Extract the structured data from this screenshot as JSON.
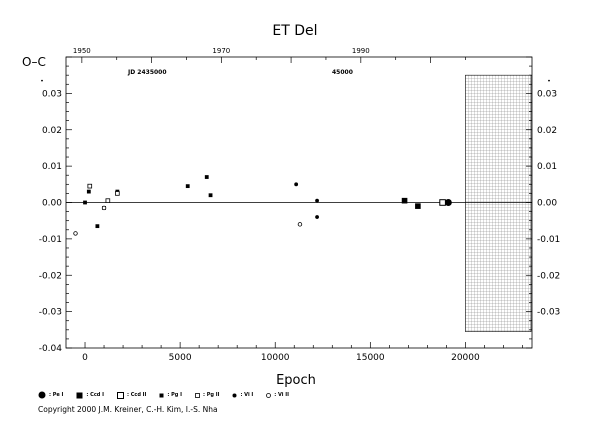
{
  "chart_data": {
    "type": "scatter",
    "title": "ET Del",
    "xlabel": "Epoch",
    "ylabel": "O–C",
    "xlim": [
      -1000,
      23500
    ],
    "ylim": [
      -0.04,
      0.04
    ],
    "x_ticks": [
      0,
      5000,
      10000,
      15000,
      20000
    ],
    "x_tick_labels": [
      "0",
      "5000",
      "10000",
      "15000",
      "20000"
    ],
    "y_ticks": [
      -0.04,
      -0.03,
      -0.02,
      -0.01,
      0.0,
      0.01,
      0.02,
      0.03
    ],
    "y_tick_labels": [
      "-0.04",
      "-0.03",
      "-0.02",
      "-0.01",
      "0.00",
      "0.01",
      "0.02",
      "0.03"
    ],
    "y_tick_labels_right": [
      "-0.03",
      "-0.02",
      "-0.01",
      "0.00",
      "0.01",
      "0.02",
      "0.03"
    ],
    "top_axis": {
      "ticks": [
        1950,
        1970,
        1990
      ],
      "tick_labels": [
        "1950",
        "1970",
        "1990"
      ]
    },
    "annotations": [
      "JD 2435000",
      "45000"
    ],
    "future_region": {
      "x_start": 20000
    },
    "series": [
      {
        "name": ": Pe I",
        "marker": "filled-circle-large",
        "points": [
          [
            19100,
            0.0
          ]
        ]
      },
      {
        "name": ": Ccd I",
        "marker": "filled-square",
        "points": [
          [
            16800,
            0.0005
          ],
          [
            17500,
            -0.001
          ]
        ]
      },
      {
        "name": ": Ccd II",
        "marker": "open-square",
        "points": [
          [
            18800,
            0.0
          ]
        ]
      },
      {
        "name": ": Pg I",
        "marker": "filled-square-small",
        "points": [
          [
            0,
            0.0
          ],
          [
            200,
            0.003
          ],
          [
            650,
            -0.0065
          ],
          [
            1000,
            -0.0015
          ],
          [
            1700,
            0.003
          ],
          [
            5400,
            0.0045
          ],
          [
            6400,
            0.007
          ],
          [
            6600,
            0.002
          ]
        ]
      },
      {
        "name": ": Pg II",
        "marker": "open-square-small",
        "points": [
          [
            250,
            0.0045
          ],
          [
            1200,
            0.0005
          ],
          [
            1700,
            0.0025
          ]
        ]
      },
      {
        "name": ": Vi I",
        "marker": "filled-dot",
        "points": [
          [
            11100,
            0.005
          ],
          [
            12200,
            0.0005
          ],
          [
            12200,
            -0.004
          ]
        ]
      },
      {
        "name": ": Vi II",
        "marker": "open-circle",
        "points": [
          [
            -500,
            -0.0085
          ],
          [
            1000,
            -0.0015
          ],
          [
            11300,
            -0.006
          ]
        ]
      }
    ]
  },
  "copyright": "Copyright 2000 J.M. Kreiner, C.-H. Kim, I.-S. Nha"
}
